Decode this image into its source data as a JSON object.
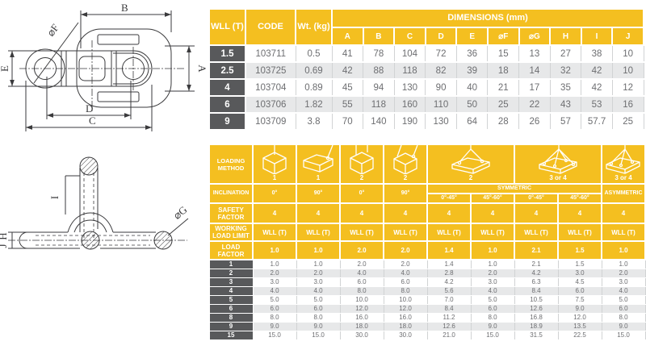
{
  "colors": {
    "brand_yellow": "#F4BF20",
    "header_gray": "#58595B",
    "row_alt_gray": "#E7E8E9",
    "cell_text_gray": "#6D6E71",
    "grid_line": "#D1D3D4",
    "drawing_line": "#3A3A3C"
  },
  "dimensions_table": {
    "headers": {
      "wll": "WLL (T)",
      "code": "CODE",
      "weight": "Wt. (kg)",
      "dimensions": "DIMENSIONS (mm)",
      "dim_columns": [
        "A",
        "B",
        "C",
        "D",
        "E",
        "⌀F",
        "⌀G",
        "H",
        "I",
        "J"
      ]
    },
    "rows": [
      {
        "wll": "1.5",
        "code": "103711",
        "wt": "0.5",
        "dims": [
          "41",
          "78",
          "104",
          "72",
          "36",
          "15",
          "13",
          "27",
          "38",
          "10"
        ]
      },
      {
        "wll": "2.5",
        "code": "103725",
        "wt": "0.69",
        "dims": [
          "42",
          "88",
          "118",
          "82",
          "39",
          "18",
          "14",
          "32",
          "42",
          "10"
        ]
      },
      {
        "wll": "4",
        "code": "103704",
        "wt": "0.89",
        "dims": [
          "45",
          "94",
          "130",
          "90",
          "40",
          "21",
          "17",
          "35",
          "42",
          "12"
        ]
      },
      {
        "wll": "6",
        "code": "103706",
        "wt": "1.82",
        "dims": [
          "55",
          "118",
          "160",
          "110",
          "50",
          "25",
          "22",
          "43",
          "53",
          "16"
        ]
      },
      {
        "wll": "9",
        "code": "103709",
        "wt": "3.8",
        "dims": [
          "70",
          "140",
          "190",
          "130",
          "64",
          "28",
          "26",
          "57",
          "57.7",
          "25"
        ]
      }
    ]
  },
  "loading_table": {
    "labels": {
      "loading_method": "LOADING METHOD",
      "inclination": "INCLINATION",
      "safety_factor": "SAFETY FACTOR",
      "working_load_limit": "WORKING LOAD LIMIT",
      "load_factor": "LOAD FACTOR",
      "symmetric": "SYMMETRIC",
      "asymmetric": "ASYMMETRIC"
    },
    "methods": [
      {
        "icon": "box-single-leg-vertical-icon",
        "label": "1"
      },
      {
        "icon": "box-single-leg-angled-icon",
        "label": "1"
      },
      {
        "icon": "box-two-leg-vertical-icon",
        "label": "2"
      },
      {
        "icon": "box-two-leg-angled-icon",
        "label": "2"
      },
      {
        "icon": "pallet-two-leg-sling-icon",
        "label": "2"
      },
      {
        "icon": "pallet-three-four-leg-sling-icon",
        "label": "3 or 4"
      },
      {
        "icon": "pallet-asymmetric-sling-icon",
        "label": "3 or 4"
      }
    ],
    "inclinations": [
      "0°",
      "90°",
      "0°",
      "90°"
    ],
    "symmetric_angles": [
      "0°-45°",
      "45°-60°",
      "0°-45°",
      "45°-60°"
    ],
    "safety_factors": [
      "4",
      "4",
      "4",
      "4",
      "4",
      "4",
      "4",
      "4",
      "4"
    ],
    "wll_headers": [
      "WLL (T)",
      "WLL (T)",
      "WLL (T)",
      "WLL (T)",
      "WLL (T)",
      "WLL (T)",
      "WLL (T)",
      "WLL (T)",
      "WLL (T)"
    ],
    "load_factors": [
      "1.0",
      "1.0",
      "2.0",
      "2.0",
      "1.4",
      "1.0",
      "2.1",
      "1.5",
      "1.0"
    ],
    "rows": [
      {
        "wll": "1",
        "values": [
          "1.0",
          "1.0",
          "2.0",
          "2.0",
          "1.4",
          "1.0",
          "2.1",
          "1.5",
          "1.0"
        ]
      },
      {
        "wll": "2",
        "values": [
          "2.0",
          "2.0",
          "4.0",
          "4.0",
          "2.8",
          "2.0",
          "4.2",
          "3.0",
          "2.0"
        ]
      },
      {
        "wll": "3",
        "values": [
          "3.0",
          "3.0",
          "6.0",
          "6.0",
          "4.2",
          "3.0",
          "6.3",
          "4.5",
          "3.0"
        ]
      },
      {
        "wll": "4",
        "values": [
          "4.0",
          "4.0",
          "8.0",
          "8.0",
          "5.6",
          "4.0",
          "8.4",
          "6.0",
          "4.0"
        ]
      },
      {
        "wll": "5",
        "values": [
          "5.0",
          "5.0",
          "10.0",
          "10.0",
          "7.0",
          "5.0",
          "10.5",
          "7.5",
          "5.0"
        ]
      },
      {
        "wll": "6",
        "values": [
          "6.0",
          "6.0",
          "12.0",
          "12.0",
          "8.4",
          "6.0",
          "12.6",
          "9.0",
          "6.0"
        ]
      },
      {
        "wll": "8",
        "values": [
          "8.0",
          "8.0",
          "16.0",
          "16.0",
          "11.2",
          "8.0",
          "16.8",
          "12.0",
          "8.0"
        ]
      },
      {
        "wll": "9",
        "values": [
          "9.0",
          "9.0",
          "18.0",
          "18.0",
          "12.6",
          "9.0",
          "18.9",
          "13.5",
          "9.0"
        ]
      },
      {
        "wll": "15",
        "values": [
          "15.0",
          "15.0",
          "30.0",
          "30.0",
          "21.0",
          "15.0",
          "31.5",
          "22.5",
          "15.0"
        ]
      }
    ]
  },
  "drawing": {
    "top_view_labels": {
      "b": "B",
      "a": "A",
      "e": "E",
      "f": "⌀F",
      "d": "D",
      "c": "C"
    },
    "side_view_labels": {
      "i": "I",
      "h": "H",
      "j": "J",
      "g": "⌀G"
    }
  }
}
